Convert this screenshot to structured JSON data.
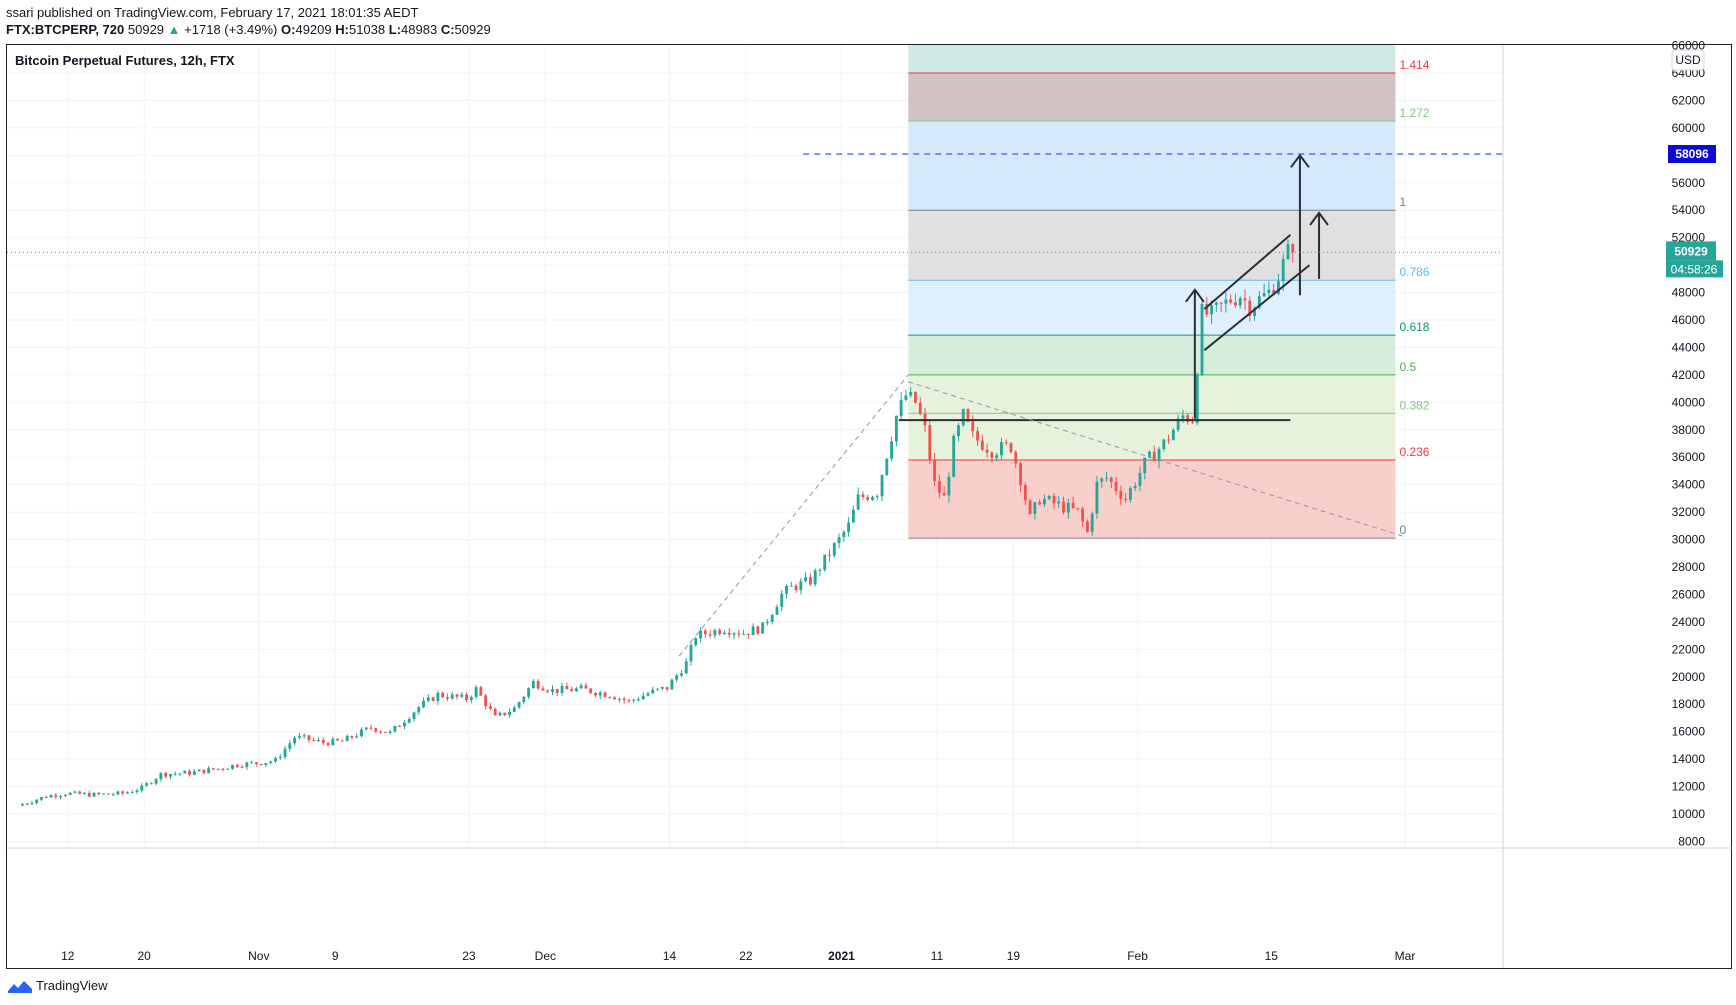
{
  "header": {
    "published": "ssari published on TradingView.com, February 17, 2021 18:01:35 AEDT",
    "symbol_line": "FTX:BTCPERP, 720",
    "last": "50929",
    "change": "+1718 (+3.49%)",
    "ohlc_o_label": "O:",
    "ohlc_o": "49209",
    "ohlc_h_label": "H:",
    "ohlc_h": "51038",
    "ohlc_l_label": "L:",
    "ohlc_l": "48983",
    "ohlc_c_label": "C:",
    "ohlc_c": "50929"
  },
  "footer": {
    "brand": "TradingView"
  },
  "colors": {
    "up": "#26a69a",
    "down": "#ef5350",
    "target_line": "#2962ff",
    "grid": "#f0f3fa"
  },
  "chart_data": {
    "type": "candlestick",
    "title": "Bitcoin Perpetual Futures, 12h, FTX",
    "currency": "USD",
    "ylim": [
      7000,
      65000
    ],
    "y_ticks": [
      8000,
      10000,
      12000,
      14000,
      16000,
      18000,
      20000,
      22000,
      24000,
      26000,
      28000,
      30000,
      32000,
      34000,
      36000,
      38000,
      40000,
      42000,
      44000,
      46000,
      48000,
      50000,
      52000,
      54000,
      56000,
      58000,
      60000,
      62000,
      64000
    ],
    "y_top_partial": "66000",
    "x_start_date": "2020-10-07",
    "x_end_date": "2021-03-23",
    "x_ticks": [
      {
        "label": "12",
        "date": "2020-10-12",
        "bold": false
      },
      {
        "label": "20",
        "date": "2020-10-20",
        "bold": false
      },
      {
        "label": "Nov",
        "date": "2020-11-01",
        "bold": false
      },
      {
        "label": "9",
        "date": "2020-11-09",
        "bold": false
      },
      {
        "label": "23",
        "date": "2020-11-23",
        "bold": false
      },
      {
        "label": "Dec",
        "date": "2020-12-01",
        "bold": false
      },
      {
        "label": "14",
        "date": "2020-12-14",
        "bold": false
      },
      {
        "label": "22",
        "date": "2020-12-22",
        "bold": false
      },
      {
        "label": "2021",
        "date": "2021-01-01",
        "bold": true
      },
      {
        "label": "11",
        "date": "2021-01-11",
        "bold": false
      },
      {
        "label": "19",
        "date": "2021-01-19",
        "bold": false
      },
      {
        "label": "Feb",
        "date": "2021-02-01",
        "bold": false
      },
      {
        "label": "15",
        "date": "2021-02-15",
        "bold": false
      },
      {
        "label": "Mar",
        "date": "2021-03-01",
        "bold": false
      }
    ],
    "last_price": 50929,
    "last_price_label": "50929",
    "countdown": "04:58:26",
    "target_price": 58096,
    "target_label": "58096",
    "price_path": [
      [
        "2020-10-07",
        10600
      ],
      [
        "2020-10-10",
        11300
      ],
      [
        "2020-10-12",
        11500
      ],
      [
        "2020-10-15",
        11400
      ],
      [
        "2020-10-18",
        11500
      ],
      [
        "2020-10-20",
        11900
      ],
      [
        "2020-10-22",
        12900
      ],
      [
        "2020-10-25",
        13000
      ],
      [
        "2020-10-28",
        13300
      ],
      [
        "2020-10-30",
        13600
      ],
      [
        "2020-11-01",
        13700
      ],
      [
        "2020-11-03",
        13900
      ],
      [
        "2020-11-05",
        15600
      ],
      [
        "2020-11-06",
        15500
      ],
      [
        "2020-11-08",
        15200
      ],
      [
        "2020-11-10",
        15300
      ],
      [
        "2020-11-13",
        16300
      ],
      [
        "2020-11-15",
        15900
      ],
      [
        "2020-11-18",
        17800
      ],
      [
        "2020-11-20",
        18700
      ],
      [
        "2020-11-23",
        18400
      ],
      [
        "2020-11-24",
        19100
      ],
      [
        "2020-11-26",
        17000
      ],
      [
        "2020-11-28",
        17700
      ],
      [
        "2020-11-30",
        19600
      ],
      [
        "2020-12-02",
        19000
      ],
      [
        "2020-12-05",
        19100
      ],
      [
        "2020-12-08",
        18700
      ],
      [
        "2020-12-10",
        18200
      ],
      [
        "2020-12-12",
        18800
      ],
      [
        "2020-12-14",
        19200
      ],
      [
        "2020-12-16",
        21000
      ],
      [
        "2020-12-17",
        23000
      ],
      [
        "2020-12-20",
        23500
      ],
      [
        "2020-12-22",
        23200
      ],
      [
        "2020-12-24",
        23600
      ],
      [
        "2020-12-26",
        26000
      ],
      [
        "2020-12-27",
        26500
      ],
      [
        "2020-12-29",
        27000
      ],
      [
        "2020-12-31",
        29000
      ],
      [
        "2021-01-02",
        31000
      ],
      [
        "2021-01-03",
        33000
      ],
      [
        "2021-01-05",
        33500
      ],
      [
        "2021-01-07",
        39000
      ],
      [
        "2021-01-08",
        40500
      ],
      [
        "2021-01-09",
        40000
      ],
      [
        "2021-01-10",
        38000
      ],
      [
        "2021-01-11",
        34000
      ],
      [
        "2021-01-12",
        33000
      ],
      [
        "2021-01-13",
        37000
      ],
      [
        "2021-01-14",
        39000
      ],
      [
        "2021-01-15",
        37500
      ],
      [
        "2021-01-17",
        36500
      ],
      [
        "2021-01-19",
        36800
      ],
      [
        "2021-01-20",
        34500
      ],
      [
        "2021-01-21",
        31500
      ],
      [
        "2021-01-22",
        33000
      ],
      [
        "2021-01-24",
        32500
      ],
      [
        "2021-01-26",
        32000
      ],
      [
        "2021-01-27",
        30500
      ],
      [
        "2021-01-28",
        34000
      ],
      [
        "2021-01-29",
        34500
      ],
      [
        "2021-01-31",
        33000
      ],
      [
        "2021-02-02",
        35500
      ],
      [
        "2021-02-04",
        37000
      ],
      [
        "2021-02-06",
        39000
      ],
      [
        "2021-02-07",
        38800
      ],
      [
        "2021-02-08",
        46500
      ],
      [
        "2021-02-09",
        46400
      ],
      [
        "2021-02-11",
        47500
      ],
      [
        "2021-02-12",
        47800
      ],
      [
        "2021-02-13",
        47000
      ],
      [
        "2021-02-15",
        48000
      ],
      [
        "2021-02-16",
        49200
      ],
      [
        "2021-02-17",
        50929
      ]
    ],
    "fib_retracement": {
      "start_date": "2021-01-08",
      "end_date": "2021-02-28",
      "levels": [
        {
          "ratio": "0",
          "price": 30100,
          "color": "#787b86",
          "fill": "#f9cfcc"
        },
        {
          "ratio": "0.236",
          "price": 35800,
          "color": "#f23645",
          "fill": "#e6f2dc"
        },
        {
          "ratio": "0.382",
          "price": 39200,
          "color": "#81c784",
          "fill": "#e6f2dc"
        },
        {
          "ratio": "0.5",
          "price": 42000,
          "color": "#4caf50",
          "fill": "#d5eedb"
        },
        {
          "ratio": "0.618",
          "price": 44900,
          "color": "#089981",
          "fill": "#e0effc"
        },
        {
          "ratio": "0.786",
          "price": 48900,
          "color": "#64b5f6",
          "fill": "#e0e0e0"
        },
        {
          "ratio": "1",
          "price": 54000,
          "color": "#787b86",
          "fill": "#d4eafc"
        },
        {
          "ratio": "1.272",
          "price": 60500,
          "color": "#81c784",
          "fill": "#d2c4c4"
        },
        {
          "ratio": "1.414",
          "price": 64000,
          "color": "#f23645",
          "fill": "#cfe9e4"
        }
      ]
    },
    "annotations": [
      {
        "type": "support_line",
        "price": 38700,
        "from": "2021-01-07",
        "to": "2021-02-17"
      },
      {
        "type": "trend_dashed",
        "from": [
          "2020-12-15",
          21500
        ],
        "to": [
          "2021-01-08",
          42000
        ]
      },
      {
        "type": "trend_dashed",
        "from": [
          "2021-01-08",
          41500
        ],
        "to": [
          "2021-03-01",
          30200
        ]
      },
      {
        "type": "channel_upper",
        "from": [
          "2021-02-08",
          46800
        ],
        "to": [
          "2021-02-17",
          52200
        ]
      },
      {
        "type": "channel_lower",
        "from": [
          "2021-02-08",
          43800
        ],
        "to": [
          "2021-02-19",
          50000
        ]
      },
      {
        "type": "arrow_up",
        "date": "2021-02-07",
        "from": 38800,
        "to": 48200
      },
      {
        "type": "arrow_up",
        "date": "2021-02-18",
        "from": 47800,
        "to": 58000
      },
      {
        "type": "arrow_up",
        "date": "2021-02-20",
        "from": 49000,
        "to": 53800
      }
    ]
  }
}
